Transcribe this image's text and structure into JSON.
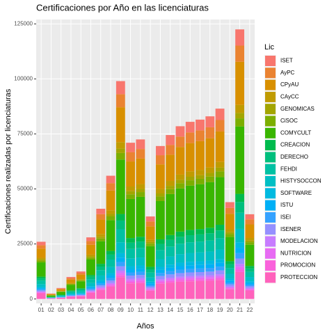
{
  "chart_data": {
    "type": "stacked_bar",
    "title": "Certificaciones por Año en las licenciaturas",
    "x_label": "Años",
    "y_label": "Certificaciones realizadas por licenciaturas",
    "legend_title": "Lic",
    "legend": "right",
    "grid": true,
    "categories": [
      "01",
      "02",
      "03",
      "04",
      "05",
      "06",
      "07",
      "08",
      "09",
      "10",
      "11",
      "12",
      "13",
      "14",
      "15",
      "16",
      "17",
      "18",
      "19",
      "20",
      "21",
      "22"
    ],
    "ylim": [
      -2000,
      127000
    ],
    "yticks": [
      0,
      25000,
      50000,
      75000,
      100000,
      125000
    ],
    "series": [
      {
        "name": "ISET",
        "color": "#F8766D",
        "values": [
          1560,
          150,
          300,
          600,
          750,
          1680,
          2460,
          3360,
          5940,
          4260,
          4350,
          2250,
          4170,
          4470,
          4710,
          4830,
          4890,
          4980,
          5190,
          2640,
          7350,
          2310
        ]
      },
      {
        "name": "AyPC",
        "color": "#EA8331",
        "values": [
          1560,
          150,
          300,
          600,
          750,
          1680,
          2460,
          3360,
          5940,
          4260,
          4350,
          2250,
          4170,
          4470,
          4710,
          4830,
          4890,
          4980,
          5190,
          2640,
          7350,
          2310
        ]
      },
      {
        "name": "CPyAU",
        "color": "#D89000",
        "values": [
          4160,
          400,
          800,
          1600,
          2000,
          4480,
          6560,
          8960,
          15840,
          11360,
          11600,
          6000,
          11120,
          11920,
          12560,
          12880,
          13040,
          13280,
          13840,
          7040,
          19600,
          6160
        ]
      },
      {
        "name": "CAyCC",
        "color": "#C09B00",
        "values": [
          780,
          75,
          150,
          300,
          375,
          840,
          1230,
          1680,
          2970,
          2130,
          2175,
          1125,
          2085,
          2235,
          2355,
          2415,
          2445,
          2490,
          2595,
          1320,
          3675,
          1155
        ]
      },
      {
        "name": "GENOMICAS",
        "color": "#A3A500",
        "values": [
          520,
          50,
          100,
          200,
          250,
          560,
          820,
          1120,
          1980,
          1420,
          1450,
          750,
          1390,
          1490,
          1570,
          1610,
          1630,
          1660,
          1730,
          880,
          2450,
          770
        ]
      },
      {
        "name": "CiSOC",
        "color": "#7CAE00",
        "values": [
          780,
          75,
          150,
          300,
          375,
          840,
          1230,
          1680,
          2970,
          2130,
          2175,
          1125,
          2085,
          2235,
          2355,
          2415,
          2445,
          2490,
          2595,
          1320,
          3675,
          1155
        ]
      },
      {
        "name": "COMYCULT",
        "color": "#39B600",
        "values": [
          6500,
          625,
          1250,
          2500,
          3125,
          7000,
          10250,
          14000,
          24750,
          17750,
          18125,
          9375,
          17375,
          18625,
          19625,
          20125,
          20375,
          20750,
          21625,
          11000,
          30625,
          9625
        ]
      },
      {
        "name": "CREACION",
        "color": "#00BB4E",
        "values": [
          780,
          75,
          150,
          300,
          375,
          840,
          1230,
          1680,
          2970,
          2130,
          2175,
          1125,
          2085,
          2235,
          2355,
          2415,
          2445,
          2490,
          2595,
          1320,
          3675,
          1155
        ]
      },
      {
        "name": "DERECHO",
        "color": "#00BF7D",
        "values": [
          1040,
          100,
          200,
          400,
          500,
          1120,
          1640,
          2240,
          3960,
          2840,
          2900,
          1500,
          2780,
          2980,
          3140,
          3220,
          3260,
          3320,
          3460,
          1760,
          4900,
          1540
        ]
      },
      {
        "name": "FEHDI",
        "color": "#00C1A3",
        "values": [
          1560,
          150,
          300,
          600,
          750,
          1680,
          2460,
          3360,
          5940,
          4260,
          4350,
          2250,
          4170,
          4470,
          4710,
          4830,
          4890,
          4980,
          5190,
          2640,
          7350,
          2310
        ]
      },
      {
        "name": "HISTYSOCCON",
        "color": "#00BFC4",
        "values": [
          1300,
          125,
          250,
          500,
          625,
          1400,
          2050,
          2800,
          4950,
          3550,
          3625,
          1875,
          3475,
          3725,
          3925,
          4025,
          4075,
          4150,
          4325,
          2200,
          6125,
          1925
        ]
      },
      {
        "name": "SOFTWARE",
        "color": "#00BAE0",
        "values": [
          520,
          50,
          100,
          200,
          250,
          560,
          820,
          1120,
          1980,
          1420,
          1450,
          750,
          1390,
          1490,
          1570,
          1610,
          1630,
          1660,
          1730,
          880,
          2450,
          770
        ]
      },
      {
        "name": "ISTU",
        "color": "#00B0F6",
        "values": [
          520,
          50,
          100,
          200,
          250,
          560,
          820,
          1120,
          1980,
          1420,
          1450,
          750,
          1390,
          1490,
          1570,
          1610,
          1630,
          1660,
          1730,
          880,
          2450,
          770
        ]
      },
      {
        "name": "ISEI",
        "color": "#35A2FF",
        "values": [
          520,
          50,
          100,
          200,
          250,
          560,
          820,
          1120,
          1980,
          1420,
          1450,
          750,
          1390,
          1490,
          1570,
          1610,
          1630,
          1660,
          1730,
          880,
          2450,
          770
        ]
      },
      {
        "name": "ISENER",
        "color": "#9590FF",
        "values": [
          520,
          50,
          100,
          200,
          250,
          560,
          820,
          1120,
          1980,
          1420,
          1450,
          750,
          1390,
          1490,
          1570,
          1610,
          1630,
          1660,
          1730,
          880,
          2450,
          770
        ]
      },
      {
        "name": "MODELACION",
        "color": "#C77CFF",
        "values": [
          260,
          25,
          50,
          100,
          125,
          280,
          410,
          560,
          990,
          710,
          725,
          375,
          695,
          745,
          785,
          805,
          815,
          830,
          865,
          440,
          1225,
          385
        ]
      },
      {
        "name": "NUTRICION",
        "color": "#E76BF3",
        "values": [
          260,
          25,
          50,
          100,
          125,
          280,
          410,
          560,
          990,
          710,
          725,
          375,
          695,
          745,
          785,
          805,
          815,
          830,
          865,
          440,
          1225,
          385
        ]
      },
      {
        "name": "PROMOCION",
        "color": "#FA62DB",
        "values": [
          260,
          25,
          50,
          100,
          125,
          280,
          410,
          560,
          990,
          710,
          725,
          375,
          695,
          745,
          785,
          805,
          815,
          830,
          865,
          440,
          1225,
          385
        ]
      },
      {
        "name": "PROTECCION",
        "color": "#FF62BC",
        "values": [
          2600,
          250,
          500,
          1000,
          1250,
          2800,
          4100,
          5600,
          9900,
          7100,
          7250,
          3750,
          6950,
          7450,
          7850,
          8050,
          8150,
          8300,
          8650,
          4400,
          12250,
          3850
        ]
      }
    ]
  }
}
